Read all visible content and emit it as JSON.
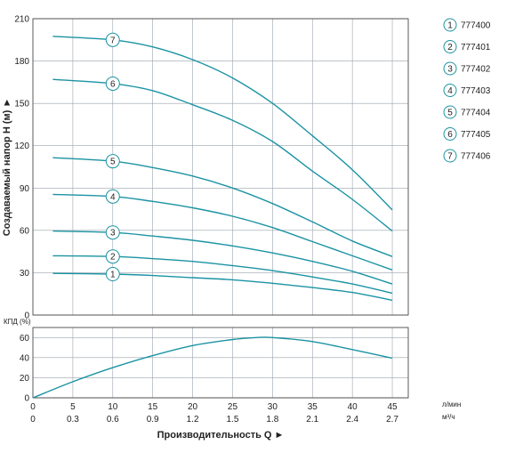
{
  "colors": {
    "curve": "#1b93a3",
    "grid": "#9aa3ad",
    "text": "#222222"
  },
  "chart_data": [
    {
      "type": "line",
      "ylabel": "Создаваемый напор H (м) ►",
      "xlim": [
        0,
        47
      ],
      "ylim": [
        0,
        210
      ],
      "yticks": [
        0,
        30,
        60,
        90,
        120,
        150,
        180,
        210
      ],
      "grid": true,
      "legend_position": "right",
      "series": [
        {
          "name": "777400",
          "badge": "1",
          "x": [
            2.5,
            10,
            15,
            20,
            25,
            30,
            35,
            40,
            45
          ],
          "y": [
            29.5,
            29,
            28,
            26.5,
            25,
            22.5,
            19.5,
            16,
            10.5
          ]
        },
        {
          "name": "777401",
          "badge": "2",
          "x": [
            2.5,
            10,
            15,
            20,
            25,
            30,
            35,
            40,
            45
          ],
          "y": [
            42,
            41.5,
            40,
            38,
            35,
            31.5,
            27,
            22,
            15.5
          ]
        },
        {
          "name": "777402",
          "badge": "3",
          "x": [
            2.5,
            10,
            15,
            20,
            25,
            30,
            35,
            40,
            45
          ],
          "y": [
            59.5,
            58.5,
            56,
            53,
            49,
            44,
            38,
            31,
            22
          ]
        },
        {
          "name": "777403",
          "badge": "4",
          "x": [
            2.5,
            10,
            15,
            20,
            25,
            30,
            35,
            40,
            45
          ],
          "y": [
            85.5,
            84,
            80.5,
            76,
            70,
            62,
            52,
            42,
            32
          ]
        },
        {
          "name": "777404",
          "badge": "5",
          "x": [
            2.5,
            10,
            15,
            20,
            25,
            30,
            35,
            40,
            45
          ],
          "y": [
            111.5,
            109,
            104.5,
            98.5,
            90,
            79,
            66,
            52.5,
            41.5
          ]
        },
        {
          "name": "777405",
          "badge": "6",
          "x": [
            2.5,
            10,
            15,
            20,
            25,
            30,
            35,
            40,
            45
          ],
          "y": [
            167,
            164,
            159,
            149,
            138,
            123,
            102,
            82,
            59.5
          ]
        },
        {
          "name": "777406",
          "badge": "7",
          "x": [
            2.5,
            10,
            15,
            20,
            25,
            30,
            35,
            40,
            45
          ],
          "y": [
            197.5,
            195,
            190,
            181,
            168,
            150,
            127,
            103,
            74.5
          ]
        }
      ]
    },
    {
      "type": "line",
      "ylabel": "КПД (%)",
      "xlabel": "Производительность Q ►",
      "xlim": [
        0,
        47
      ],
      "ylim": [
        0,
        70
      ],
      "yticks": [
        0,
        20,
        40,
        60
      ],
      "xticks": [
        0,
        5,
        10,
        15,
        20,
        25,
        30,
        35,
        40,
        45
      ],
      "x2ticks": [
        "0",
        "0.3",
        "0.6",
        "0.9",
        "1.2",
        "1.5",
        "1.8",
        "2.1",
        "2.4",
        "2.7"
      ],
      "x_unit": "л/мин",
      "x2_unit": "м³/ч",
      "grid": true,
      "series": [
        {
          "x": [
            0,
            5,
            10,
            15,
            20,
            25,
            28,
            30,
            35,
            40,
            45
          ],
          "y": [
            0,
            16,
            30,
            42,
            52,
            58,
            60,
            60,
            56,
            48,
            39.5
          ]
        }
      ]
    }
  ]
}
